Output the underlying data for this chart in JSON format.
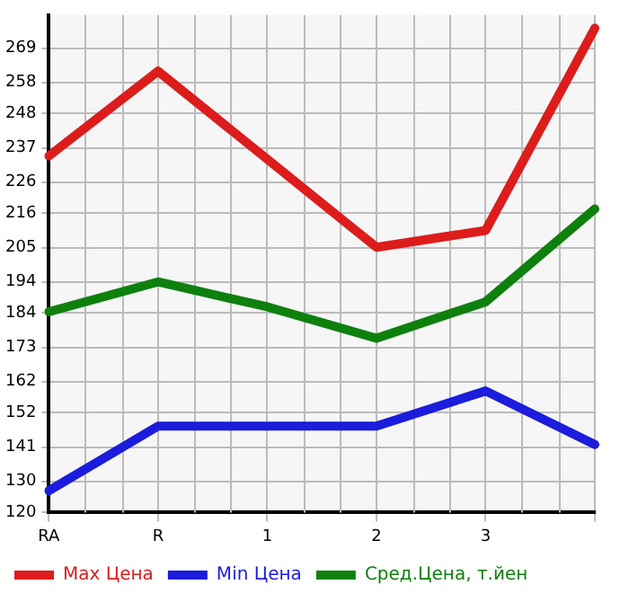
{
  "chart_data": {
    "type": "line",
    "categories": [
      "RA",
      "R",
      "1",
      "2",
      "3",
      null
    ],
    "series": [
      {
        "name": "Max Цена",
        "color": "#dd1c1c",
        "values": [
          234.4,
          261.6,
          233.4,
          205.1,
          210.5,
          275.4
        ]
      },
      {
        "name": "Min Цена",
        "color": "#1c1cdd",
        "values": [
          127,
          147.7,
          147.7,
          147.7,
          159,
          141.8
        ]
      },
      {
        "name": "Сред.Цена, т.йен",
        "color": "#0e800e",
        "values": [
          184.4,
          194,
          186,
          175.9,
          187.6,
          217.4
        ]
      }
    ],
    "ylim": [
      120,
      279.6
    ],
    "yticks": [
      120,
      130,
      141,
      152,
      162,
      173,
      184,
      194,
      205,
      216,
      226,
      237,
      248,
      258,
      269
    ],
    "grid": true,
    "legend": "bottom",
    "marker": "none",
    "line_style": "solid"
  }
}
